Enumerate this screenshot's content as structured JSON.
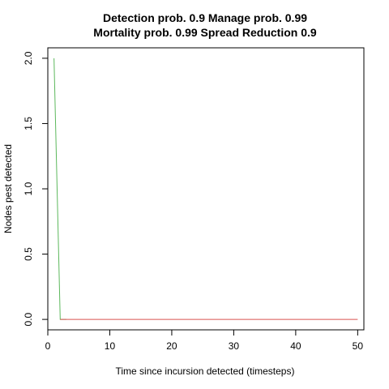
{
  "chart_data": {
    "type": "line",
    "title_line1": "Detection prob. 0.9 Manage prob. 0.99",
    "title_line2": "Mortality prob. 0.99 Spread Reduction 0.9",
    "xlabel": "Time since incursion detected (timesteps)",
    "ylabel": "Nodes pest detected",
    "xlim": [
      0,
      51
    ],
    "ylim": [
      -0.08,
      2.08
    ],
    "xticks": [
      0,
      10,
      20,
      30,
      40,
      50
    ],
    "yticks": [
      "0.0",
      "0.5",
      "1.0",
      "1.5",
      "2.0"
    ],
    "grid": false,
    "series": [
      {
        "color": "#5cb85c",
        "x": [
          1,
          2,
          3
        ],
        "y": [
          2,
          0,
          0
        ]
      },
      {
        "color": "#d9534f",
        "x": [
          2,
          50
        ],
        "y": [
          0,
          0
        ]
      }
    ]
  }
}
